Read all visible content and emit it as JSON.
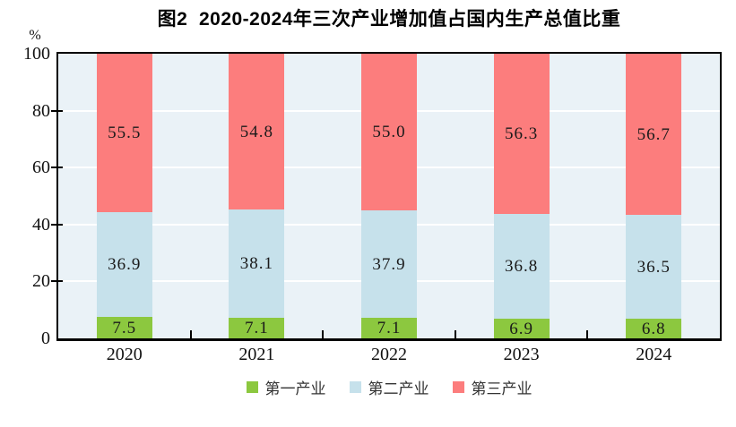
{
  "title": "图2  2020-2024年三次产业增加值占国内生产总值比重",
  "y_axis": {
    "unit": "%"
  },
  "colors": {
    "plot_background": "#EAF2F7",
    "gridline": "#FFFFFF",
    "axis_frame": "#000000",
    "tick": "#000000",
    "value_label": "#1A1A1A",
    "primary_green": "#8CC83F",
    "secondary_blue": "#C6E1EB",
    "tertiary_red": "#FC7D7D"
  },
  "chart_data": {
    "type": "bar",
    "stacked": true,
    "title": "图2  2020-2024年三次产业增加值占国内生产总值比重",
    "categories": [
      "2020",
      "2021",
      "2022",
      "2023",
      "2024"
    ],
    "series": [
      {
        "name": "第一产业",
        "key": "primary",
        "color": "#8CC83F",
        "values": [
          7.5,
          7.1,
          7.1,
          6.9,
          6.8
        ]
      },
      {
        "name": "第二产业",
        "key": "secondary",
        "color": "#C6E1EB",
        "values": [
          36.9,
          38.1,
          37.9,
          36.8,
          36.5
        ]
      },
      {
        "name": "第三产业",
        "key": "tertiary",
        "color": "#FC7D7D",
        "values": [
          55.5,
          54.8,
          55.0,
          56.3,
          56.7
        ]
      }
    ],
    "xlabel": "",
    "ylabel": "%",
    "ylim": [
      0,
      100
    ],
    "yticks": [
      0,
      20,
      40,
      60,
      80,
      100
    ],
    "grid": true,
    "legend_position": "bottom",
    "value_labels_shown": true,
    "value_label_format": "one_decimal"
  }
}
